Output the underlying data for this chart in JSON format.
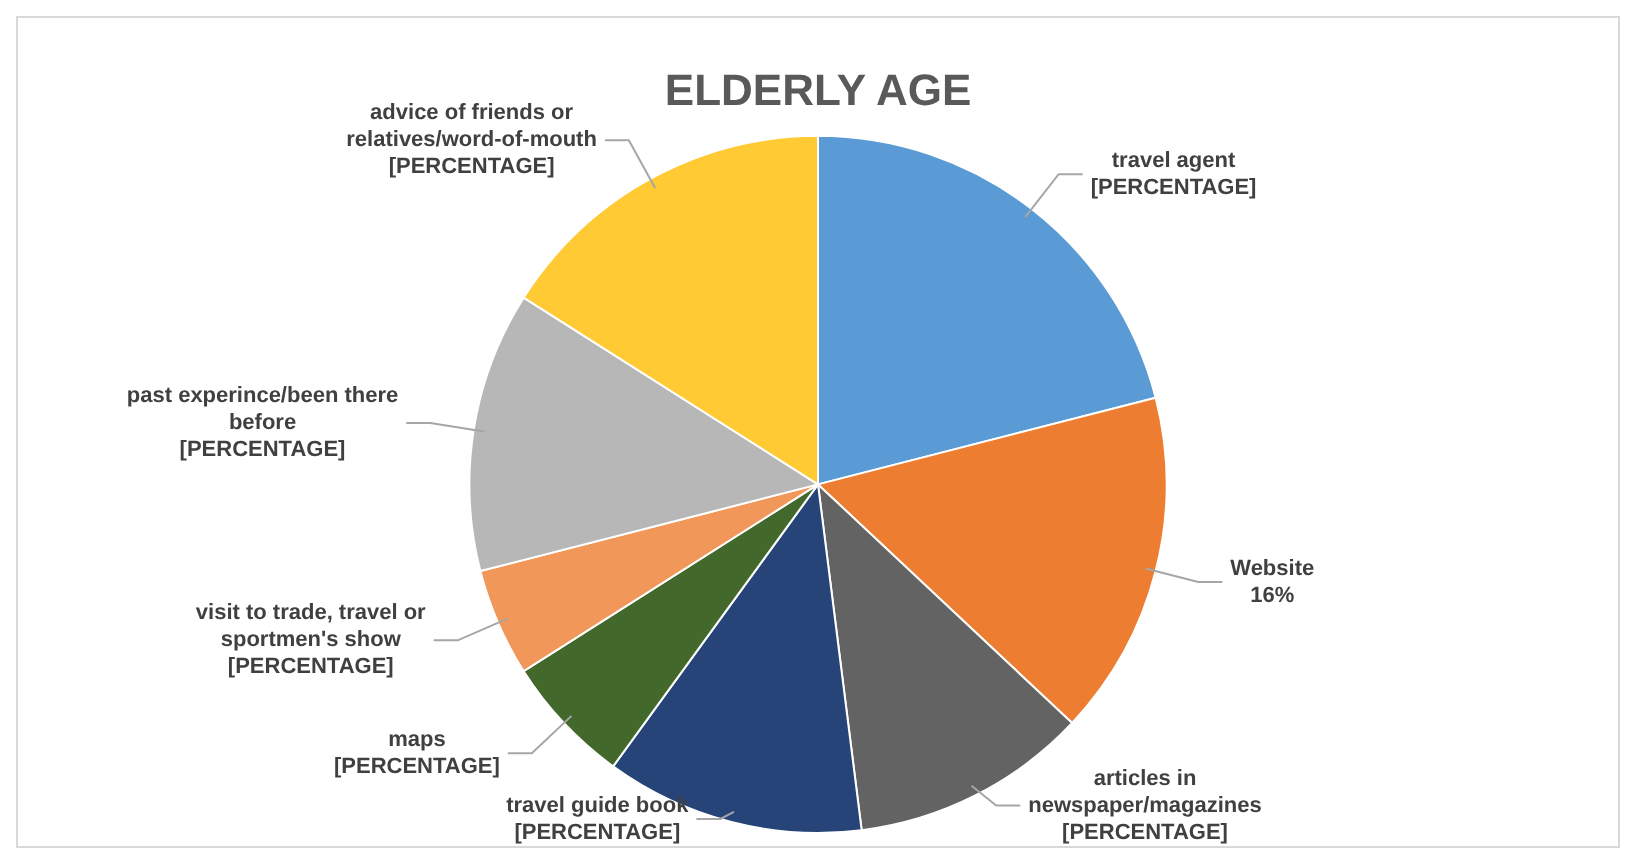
{
  "chart_data": {
    "type": "pie",
    "title": "ELDERLY AGE",
    "categories": [
      "travel agent",
      "Website",
      "articles in newspaper/magazines",
      "travel guide book",
      "maps",
      "visit to trade, travel or sportmen's show",
      "past experince/been there before",
      "advice of friends or relatives/word-of-mouth"
    ],
    "values": [
      21,
      16,
      11,
      12,
      6,
      5,
      13,
      16
    ],
    "colors": [
      "#5b9bd5",
      "#ed7d31",
      "#636363",
      "#264478",
      "#43682b",
      "#f1975a",
      "#b7b7b7",
      "#ffca33"
    ],
    "value_labels": [
      "[PERCENTAGE]",
      "16%",
      "[PERCENTAGE]",
      "[PERCENTAGE]",
      "[PERCENTAGE]",
      "[PERCENTAGE]",
      "[PERCENTAGE]",
      "[PERCENTAGE]"
    ],
    "legend": false
  }
}
